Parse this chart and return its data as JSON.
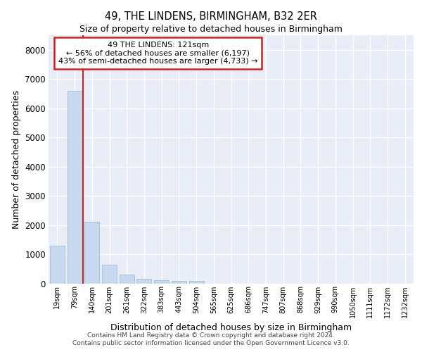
{
  "title": "49, THE LINDENS, BIRMINGHAM, B32 2ER",
  "subtitle": "Size of property relative to detached houses in Birmingham",
  "xlabel": "Distribution of detached houses by size in Birmingham",
  "ylabel": "Number of detached properties",
  "footer_line1": "Contains HM Land Registry data © Crown copyright and database right 2024.",
  "footer_line2": "Contains public sector information licensed under the Open Government Licence v3.0.",
  "bin_labels": [
    "19sqm",
    "79sqm",
    "140sqm",
    "201sqm",
    "261sqm",
    "322sqm",
    "383sqm",
    "443sqm",
    "504sqm",
    "565sqm",
    "625sqm",
    "686sqm",
    "747sqm",
    "807sqm",
    "868sqm",
    "929sqm",
    "990sqm",
    "1050sqm",
    "1111sqm",
    "1172sqm",
    "1232sqm"
  ],
  "bar_values": [
    1300,
    6600,
    2100,
    650,
    300,
    150,
    100,
    80,
    80,
    0,
    0,
    0,
    0,
    0,
    0,
    0,
    0,
    0,
    0,
    0,
    0
  ],
  "bar_color": "#c8d8ee",
  "bar_edge_color": "#a0bcd8",
  "highlight_color": "#cc2222",
  "vline_x": 1.5,
  "annotation_line1": "49 THE LINDENS: 121sqm",
  "annotation_line2": "← 56% of detached houses are smaller (6,197)",
  "annotation_line3": "43% of semi-detached houses are larger (4,733) →",
  "ann_box_color": "#cc2222",
  "ylim": [
    0,
    8500
  ],
  "yticks": [
    0,
    1000,
    2000,
    3000,
    4000,
    5000,
    6000,
    7000,
    8000
  ],
  "plot_bg_color": "#e8edf8",
  "grid_color": "#ffffff",
  "fig_bg_color": "#ffffff"
}
